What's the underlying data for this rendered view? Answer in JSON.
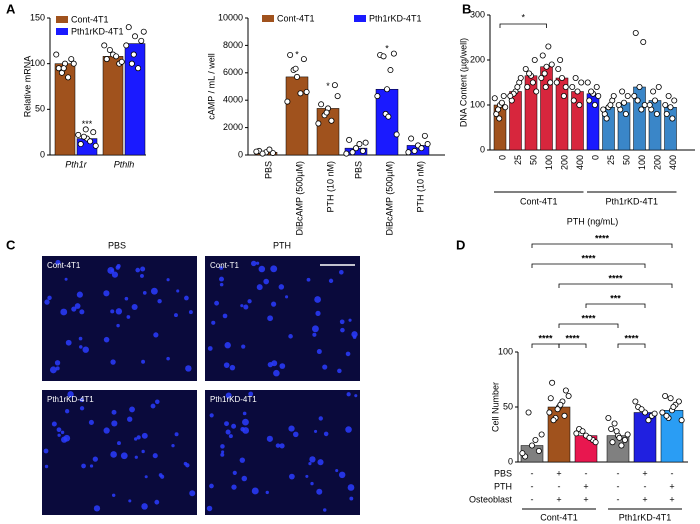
{
  "panel_labels": [
    "A",
    "B",
    "C",
    "D"
  ],
  "chart_data": [
    {
      "type": "bar",
      "y_label": "Relative mRNA",
      "categories": [
        "Pth1r",
        "Pthlh"
      ],
      "ylim": [
        0,
        150
      ],
      "yticks": [
        0,
        50,
        100,
        150
      ],
      "legend": "top-left",
      "series": [
        {
          "name": "Cont-4T1",
          "color": "#a0521d",
          "values": [
            100,
            108
          ],
          "points": [
            [
              100,
              95,
              105,
              90,
              85,
              110,
              100,
              95
            ],
            [
              110,
              105,
              100,
              115,
              108,
              120,
              102
            ]
          ]
        },
        {
          "name": "Pth1rKD-4T1",
          "color": "#1a1aff",
          "values": [
            18,
            122
          ],
          "points": [
            [
              18,
              12,
              25,
              20,
              15,
              22,
              10,
              28
            ],
            [
              130,
              140,
              125,
              100,
              95,
              120,
              135,
              110
            ]
          ]
        }
      ],
      "annotations": [
        {
          "text": "***"
        }
      ]
    },
    {
      "type": "bar",
      "y_label": "cAMP / mL / well",
      "categories": [
        "PBS",
        "DiBcAMP (500µM)",
        "PTH (10 nM)"
      ],
      "ylim": [
        0,
        10000
      ],
      "yticks": [
        0,
        2000,
        4000,
        6000,
        8000,
        10000
      ],
      "legend": "top",
      "series": [
        {
          "name": "Cont-4T1",
          "color": "#a0521d",
          "values": [
            200,
            5700,
            3400
          ],
          "points": [
            [
              200,
              300,
              150,
              100,
              400,
              250
            ],
            [
              5700,
              7300,
              7000,
              6200,
              4500,
              3900,
              4600,
              6300
            ],
            [
              3400,
              3700,
              5100,
              2900,
              2500,
              2300,
              4300,
              3100
            ]
          ]
        },
        {
          "name": "Pth1rKD-4T1",
          "color": "#1a1aff",
          "values": [
            500,
            4800,
            700
          ],
          "points": [
            [
              500,
              1100,
              300,
              200,
              800,
              100,
              900
            ],
            [
              4800,
              7300,
              7400,
              7200,
              6200,
              4300,
              1500,
              3000,
              2800
            ],
            [
              700,
              1200,
              1400,
              300,
              500,
              200,
              800
            ]
          ]
        }
      ],
      "annotations": [
        {
          "text": "*"
        },
        {
          "text": "*"
        },
        {
          "text": "*"
        }
      ]
    },
    {
      "type": "bar",
      "y_label": "DNA Content (µg/well)",
      "x_label": "PTH (ng/mL)",
      "categories": [
        "0",
        "25",
        "50",
        "100",
        "200",
        "400"
      ],
      "ylim": [
        0,
        300
      ],
      "yticks": [
        0,
        100,
        200,
        300
      ],
      "series": [
        {
          "name": "Cont-4T1",
          "colors": [
            "#a0521d",
            "#d7263d",
            "#d7263d",
            "#d7263d",
            "#d7263d",
            "#d7263d"
          ],
          "values": [
            100,
            130,
            165,
            185,
            160,
            130
          ],
          "points": [
            [
              100,
              80,
              120,
              90,
              105,
              115,
              95,
              70
            ],
            [
              130,
              110,
              150,
              125,
              140,
              120,
              160
            ],
            [
              165,
              140,
              200,
              170,
              150,
              180,
              130
            ],
            [
              185,
              210,
              150,
              170,
              230,
              160,
              190,
              140
            ],
            [
              160,
              180,
              140,
              200,
              120,
              150
            ],
            [
              130,
              110,
              150,
              160,
              100,
              140
            ]
          ]
        },
        {
          "name": "Pth1rKD-4T1",
          "colors": [
            "#1a1aff",
            "#3a86c8",
            "#3a86c8",
            "#3a86c8",
            "#3a86c8",
            "#3a86c8"
          ],
          "values": [
            125,
            95,
            105,
            140,
            110,
            95
          ],
          "points": [
            [
              125,
              110,
              140,
              130,
              100,
              150,
              120
            ],
            [
              95,
              80,
              110,
              70,
              100,
              90,
              120
            ],
            [
              105,
              90,
              120,
              130,
              80,
              100
            ],
            [
              140,
              260,
              240,
              110,
              90,
              120,
              100
            ],
            [
              110,
              90,
              140,
              130,
              80,
              100
            ],
            [
              95,
              80,
              110,
              120,
              70,
              100
            ]
          ]
        }
      ],
      "annotations": [
        {
          "text": "*"
        }
      ]
    },
    {
      "type": "bar",
      "y_label": "Cell Number",
      "ylim": [
        0,
        100
      ],
      "yticks": [
        0,
        50,
        100
      ],
      "series": [
        {
          "name": "Cont-4T1",
          "colors": [
            "#808080",
            "#a0521d",
            "#e8174f"
          ],
          "values": [
            15,
            50,
            24
          ],
          "points": [
            [
              15,
              5,
              10,
              45,
              20,
              8,
              25
            ],
            [
              50,
              72,
              65,
              40,
              55,
              45,
              60,
              48,
              52,
              38,
              42,
              58
            ],
            [
              24,
              30,
              20,
              28,
              22,
              26,
              18
            ]
          ]
        },
        {
          "name": "Pth1rKD-4T1",
          "colors": [
            "#808080",
            "#2020e0",
            "#2a9df4"
          ],
          "values": [
            24,
            45,
            47
          ],
          "points": [
            [
              24,
              30,
              20,
              35,
              15,
              40,
              25,
              28,
              22,
              18
            ],
            [
              45,
              50,
              42,
              48,
              38,
              55,
              44
            ],
            [
              47,
              60,
              55,
              40,
              52,
              45,
              38,
              58,
              50,
              42
            ]
          ]
        }
      ],
      "table": [
        {
          "label": "PBS",
          "cells": [
            "-",
            "+",
            "-",
            "-",
            "+",
            "-"
          ]
        },
        {
          "label": "PTH",
          "cells": [
            "-",
            "-",
            "+",
            "-",
            "-",
            "+"
          ]
        },
        {
          "label": "Osteoblast",
          "cells": [
            "-",
            "+",
            "+",
            "-",
            "+",
            "+"
          ]
        }
      ],
      "annotations": [
        {
          "text": "****"
        },
        {
          "text": "****"
        },
        {
          "text": "****"
        },
        {
          "text": "****"
        },
        {
          "text": "***"
        },
        {
          "text": "****"
        },
        {
          "text": "****"
        },
        {
          "text": "****"
        }
      ]
    }
  ],
  "panel_c": {
    "columns": [
      "PBS",
      "PTH"
    ],
    "images": [
      "Cont-4T1",
      "Cont-T1",
      "Pth1rKD-4T1",
      "Pth1rKD-4T1"
    ]
  }
}
